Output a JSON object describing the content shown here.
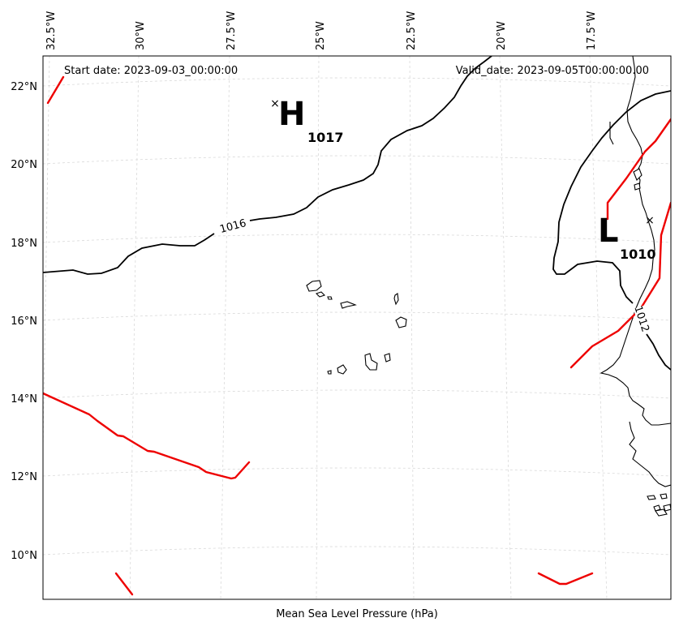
{
  "map": {
    "start_date": "Start date: 2023-09-03_00:00:00",
    "valid_date": "Valid_date: 2023-09-05T00:00:00.00",
    "bottom_label": "Mean Sea Level Pressure (hPa)",
    "lon_ticks": [
      "32.5°W",
      "30°W",
      "27.5°W",
      "25°W",
      "22.5°W",
      "20°W",
      "17.5°W"
    ],
    "lat_ticks": [
      "22°N",
      "20°N",
      "18°N",
      "16°N",
      "14°N",
      "12°N",
      "10°N"
    ],
    "pressure_centers": [
      {
        "type": "H",
        "value": "1017"
      },
      {
        "type": "L",
        "value": "1010"
      }
    ],
    "isobar_labels": [
      "1016",
      "1012"
    ],
    "colors": {
      "isobar": "#000000",
      "front": "#ee0000",
      "grid": "#d9d9d9"
    }
  }
}
